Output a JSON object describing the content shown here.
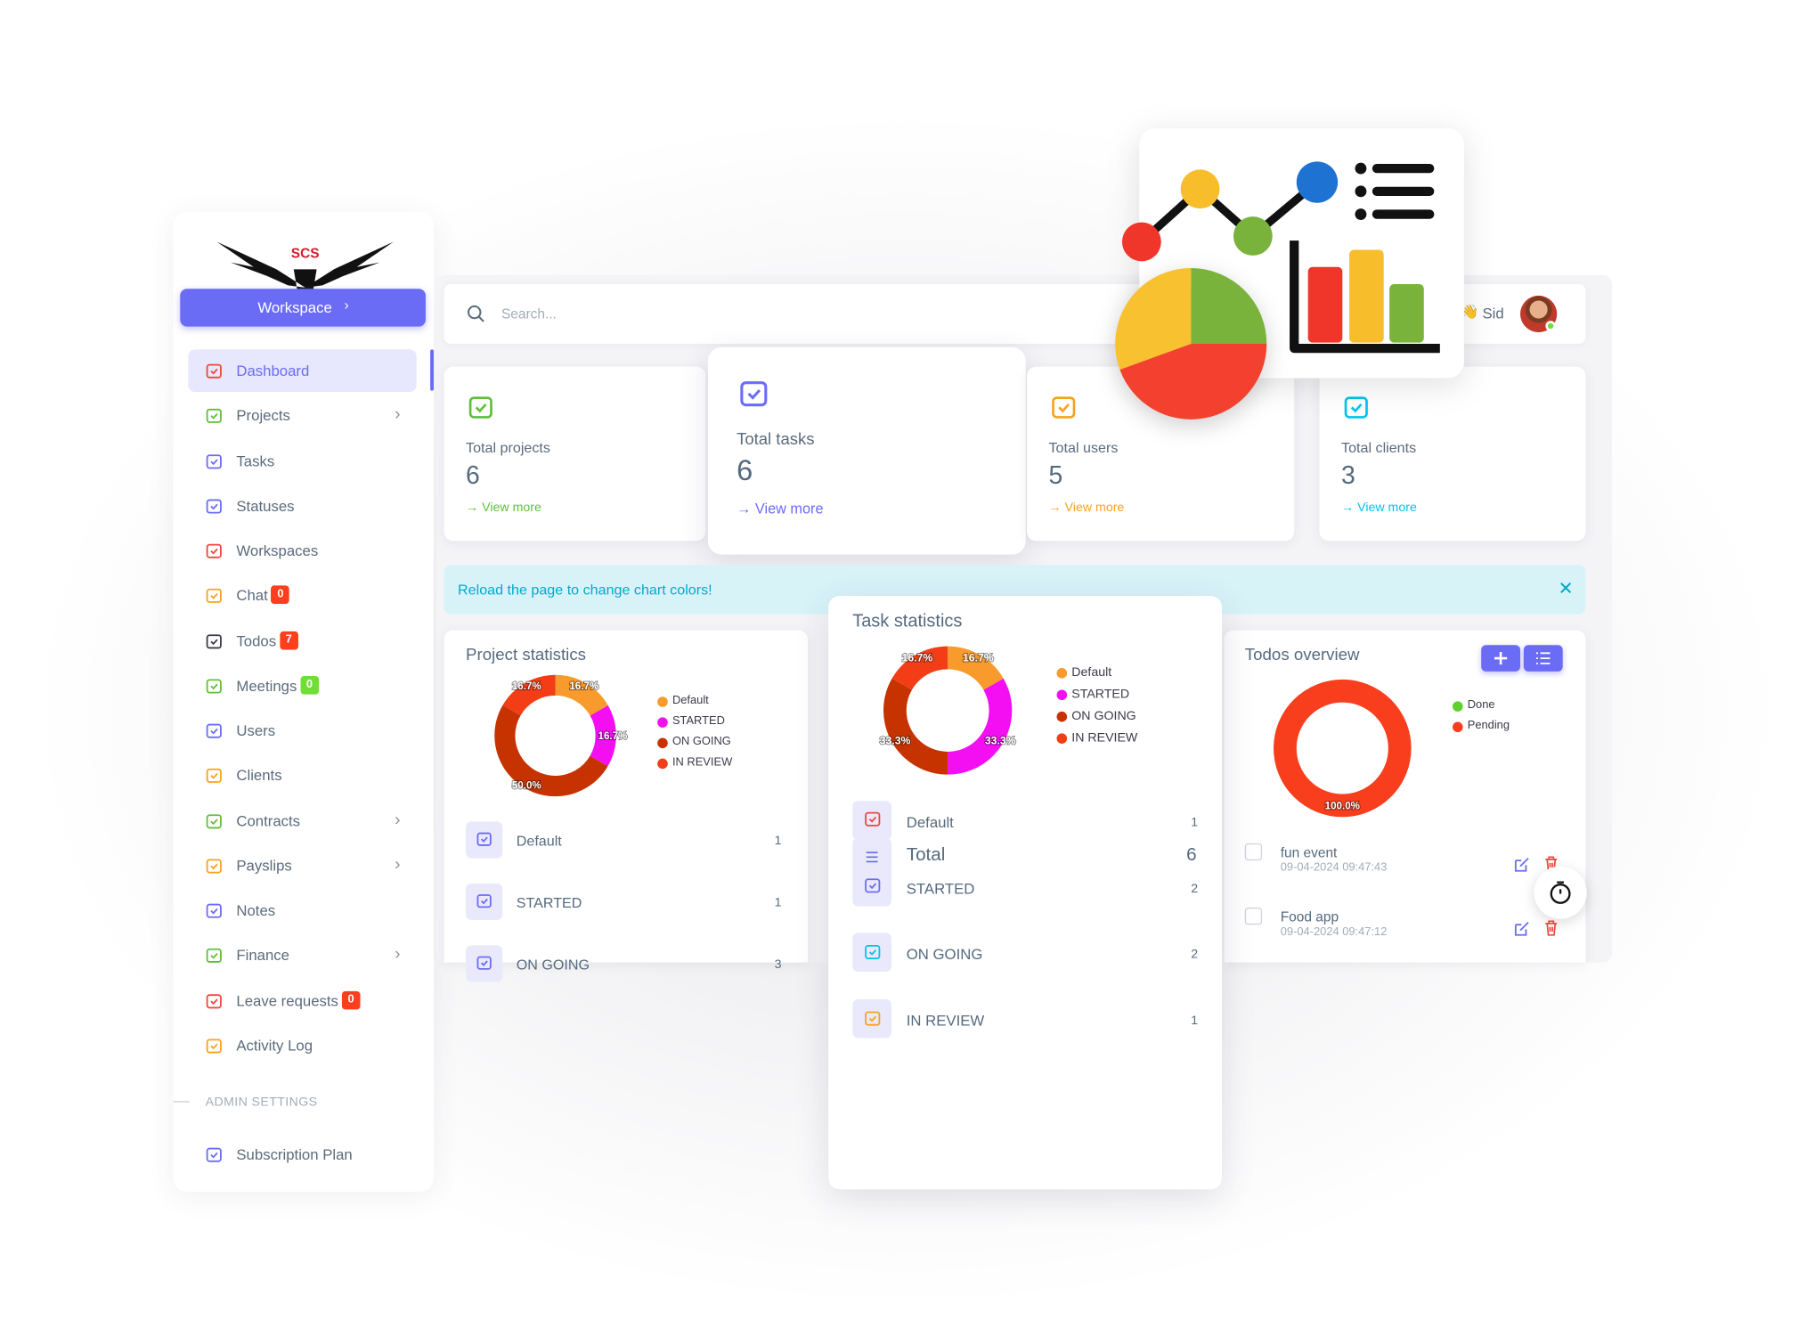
{
  "sidebar": {
    "logo_text": "SCS",
    "workspace_button": "Workspace",
    "menu": [
      {
        "label": "Dashboard"
      },
      {
        "label": "Projects"
      },
      {
        "label": "Tasks"
      },
      {
        "label": "Statuses"
      },
      {
        "label": "Workspaces"
      },
      {
        "label": "Chat",
        "badge": 0
      },
      {
        "label": "Todos",
        "badge": 7
      },
      {
        "label": "Meetings",
        "badge": 0
      },
      {
        "label": "Users"
      },
      {
        "label": "Clients"
      },
      {
        "label": "Contracts"
      },
      {
        "label": "Payslips"
      },
      {
        "label": "Notes"
      },
      {
        "label": "Finance"
      },
      {
        "label": "Leave requests",
        "badge": 0
      },
      {
        "label": "Activity Log"
      }
    ],
    "section_title": "ADMIN SETTINGS",
    "admin_menu": [
      {
        "label": "Subscription Plan"
      }
    ]
  },
  "header": {
    "search_placeholder": "Search...",
    "user_name": "Sid"
  },
  "stat_cards": [
    {
      "label": "Total projects",
      "value": 6,
      "link": "View more"
    },
    {
      "label": "Total tasks",
      "value": 6,
      "link": "View more"
    },
    {
      "label": "Total users",
      "value": 5,
      "link": "View more"
    },
    {
      "label": "Total clients",
      "value": 3,
      "link": "View more"
    }
  ],
  "alert": {
    "text": "Reload the page to change chart colors!"
  },
  "project_statistics": {
    "title": "Project statistics",
    "chart": {
      "type": "donut",
      "series": [
        {
          "name": "Default",
          "color": "#f89a2c",
          "value": 16.7,
          "value_label": "16.7%"
        },
        {
          "name": "STARTED",
          "color": "#f40ef2",
          "value": 16.7,
          "value_label": "16.7%"
        },
        {
          "name": "ON GOING",
          "color": "#c73300",
          "value": 50.0,
          "value_label": "50.0%"
        },
        {
          "name": "IN REVIEW",
          "color": "#f23d17",
          "value": 16.7,
          "value_label": "16.7%"
        }
      ]
    },
    "rows": [
      {
        "label": "Default",
        "count": 1
      },
      {
        "label": "STARTED",
        "count": 1
      },
      {
        "label": "ON GOING",
        "count": 3
      }
    ]
  },
  "task_statistics": {
    "title": "Task statistics",
    "chart": {
      "type": "donut",
      "series": [
        {
          "name": "Default",
          "color": "#f89a2c",
          "value": 16.7,
          "value_label": "16.7%"
        },
        {
          "name": "STARTED",
          "color": "#f40ef2",
          "value": 33.3,
          "value_label": "33.3%"
        },
        {
          "name": "ON GOING",
          "color": "#c73300",
          "value": 33.3,
          "value_label": "33.3%"
        },
        {
          "name": "IN REVIEW",
          "color": "#f23d17",
          "value": 16.7,
          "value_label": "16.7%"
        }
      ]
    },
    "rows": [
      {
        "label": "Default",
        "count": 1
      },
      {
        "label": "STARTED",
        "count": 2
      },
      {
        "label": "ON GOING",
        "count": 2
      },
      {
        "label": "IN REVIEW",
        "count": 1
      }
    ],
    "total": {
      "label": "Total",
      "count": 6
    }
  },
  "todos_overview": {
    "title": "Todos overview",
    "chart": {
      "type": "donut",
      "series": [
        {
          "name": "Done",
          "color": "#5fd12d",
          "value": 0
        },
        {
          "name": "Pending",
          "color": "#f83e1c",
          "value": 100.0,
          "value_label": "100.0%"
        }
      ]
    },
    "items": [
      {
        "title": "fun event",
        "date": "09-04-2024 09:47:43"
      },
      {
        "title": "Food app",
        "date": "09-04-2024 09:47:12"
      }
    ]
  }
}
